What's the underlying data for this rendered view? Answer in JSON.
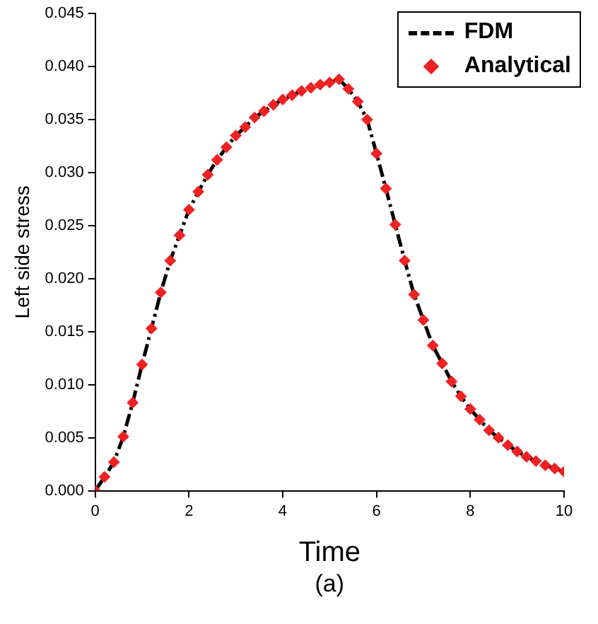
{
  "chart_data": {
    "type": "line",
    "xlabel": "Time",
    "ylabel": "Left side stress",
    "annotations": [
      "(a)"
    ],
    "xlim": [
      0,
      10
    ],
    "xticks": [
      0,
      2,
      4,
      6,
      8,
      10
    ],
    "ylim": [
      0,
      0.045
    ],
    "yticks": [
      {
        "value": 0,
        "label": "0.000"
      },
      {
        "value": 0.005,
        "label": "0.005"
      },
      {
        "value": 0.01,
        "label": "0.010"
      },
      {
        "value": 0.015,
        "label": "0.015"
      },
      {
        "value": 0.02,
        "label": "0.020"
      },
      {
        "value": 0.025,
        "label": "0.025"
      },
      {
        "value": 0.03,
        "label": "0.030"
      },
      {
        "value": 0.035,
        "label": "0.035"
      },
      {
        "value": 0.04,
        "label": "0.040"
      },
      {
        "value": 0.045,
        "label": "0.045"
      }
    ],
    "x": [
      0,
      0.2,
      0.4,
      0.6,
      0.8,
      1,
      1.2,
      1.4,
      1.6,
      1.8,
      2,
      2.2,
      2.4,
      2.6,
      2.8,
      3,
      3.2,
      3.4,
      3.6,
      3.8,
      4,
      4.2,
      4.4,
      4.6,
      4.8,
      5,
      5.2,
      5.4,
      5.6,
      5.8,
      6,
      6.2,
      6.4,
      6.6,
      6.8,
      7,
      7.2,
      7.4,
      7.6,
      7.8,
      8,
      8.2,
      8.4,
      8.6,
      8.8,
      9,
      9.2,
      9.4,
      9.6,
      9.8,
      10
    ],
    "legend": "top right",
    "grid": false,
    "series": [
      {
        "name": "FDM",
        "type": "line",
        "color": "#000000",
        "line_style": "dashed",
        "marker": "none",
        "values": [
          0,
          0.0013,
          0.0027,
          0.0051,
          0.0083,
          0.0119,
          0.0153,
          0.0187,
          0.0217,
          0.0241,
          0.0265,
          0.0282,
          0.0298,
          0.0312,
          0.0324,
          0.0335,
          0.0343,
          0.0352,
          0.0358,
          0.0364,
          0.0369,
          0.0373,
          0.0377,
          0.038,
          0.0383,
          0.0385,
          0.0388,
          0.0379,
          0.0367,
          0.035,
          0.0318,
          0.0285,
          0.0251,
          0.0217,
          0.0185,
          0.0161,
          0.0137,
          0.012,
          0.0103,
          0.0089,
          0.0077,
          0.0067,
          0.0057,
          0.005,
          0.0043,
          0.0037,
          0.0032,
          0.0028,
          0.0024,
          0.0021,
          0.0018
        ]
      },
      {
        "name": "Analytical",
        "type": "scatter",
        "color": "#ee2222",
        "marker": "diamond",
        "values": [
          0,
          0.0013,
          0.0027,
          0.0051,
          0.0083,
          0.0119,
          0.0153,
          0.0187,
          0.0217,
          0.0241,
          0.0265,
          0.0282,
          0.0298,
          0.0312,
          0.0324,
          0.0335,
          0.0343,
          0.0352,
          0.0358,
          0.0364,
          0.0369,
          0.0373,
          0.0377,
          0.038,
          0.0383,
          0.0385,
          0.0388,
          0.0379,
          0.0367,
          0.035,
          0.0318,
          0.0285,
          0.0251,
          0.0217,
          0.0185,
          0.0161,
          0.0137,
          0.012,
          0.0103,
          0.0089,
          0.0077,
          0.0067,
          0.0057,
          0.005,
          0.0043,
          0.0037,
          0.0032,
          0.0028,
          0.0024,
          0.0021,
          0.0018
        ]
      }
    ]
  }
}
